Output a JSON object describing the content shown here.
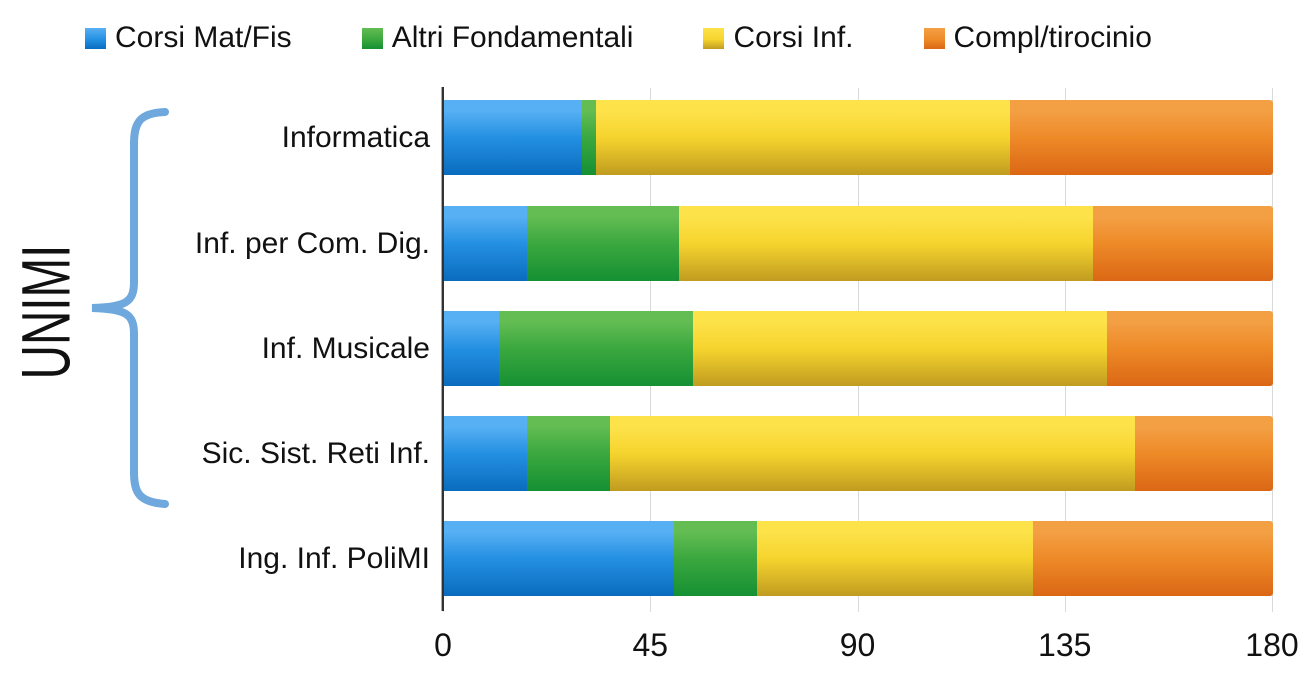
{
  "legend": {
    "items": [
      {
        "label": "Corsi Mat/Fis"
      },
      {
        "label": "Altri Fondamentali"
      },
      {
        "label": "Corsi Inf."
      },
      {
        "label": "Compl/tirocinio"
      }
    ]
  },
  "group_annotation": {
    "label": "UNIMI",
    "brace_color": "#6fa8dc",
    "covers_categories": [
      "Informatica",
      "Inf. per Com. Dig.",
      "Inf. Musicale",
      "Sic. Sist. Reti Inf."
    ]
  },
  "chart_data": {
    "type": "bar",
    "orientation": "horizontal",
    "stacked": true,
    "title": "",
    "xlabel": "",
    "ylabel": "",
    "xlim": [
      0,
      180
    ],
    "x_ticks": [
      0,
      45,
      90,
      135,
      180
    ],
    "x_tick_labels": [
      "0",
      "45",
      "90",
      "135",
      "180"
    ],
    "grid": true,
    "legend_position": "top",
    "categories": [
      "Informatica",
      "Inf. per Com. Dig.",
      "Inf. Musicale",
      "Sic. Sist. Reti Inf.",
      "Ing. Inf. PoliMI"
    ],
    "series": [
      {
        "name": "Corsi Mat/Fis",
        "color": "#2490e2",
        "gradient": [
          "#58b0f4",
          "#2490e2",
          "#0a6cbe"
        ],
        "values": [
          30,
          18,
          12,
          18,
          50
        ]
      },
      {
        "name": "Altri Fondamentali",
        "color": "#3ba83f",
        "gradient": [
          "#63bd53",
          "#3ba83f",
          "#159033"
        ],
        "values": [
          3,
          33,
          42,
          18,
          18
        ]
      },
      {
        "name": "Corsi Inf.",
        "color": "#f6d42e",
        "gradient": [
          "#fde24a",
          "#f6d42e",
          "#c09c20"
        ],
        "values": [
          90,
          90,
          90,
          114,
          60
        ]
      },
      {
        "name": "Compl/tirocinio",
        "color": "#ee8a28",
        "gradient": [
          "#f3a045",
          "#ee8a28",
          "#db6715"
        ],
        "values": [
          57,
          39,
          36,
          30,
          52
        ]
      }
    ],
    "row_totals": [
      180,
      180,
      180,
      180,
      180
    ]
  }
}
